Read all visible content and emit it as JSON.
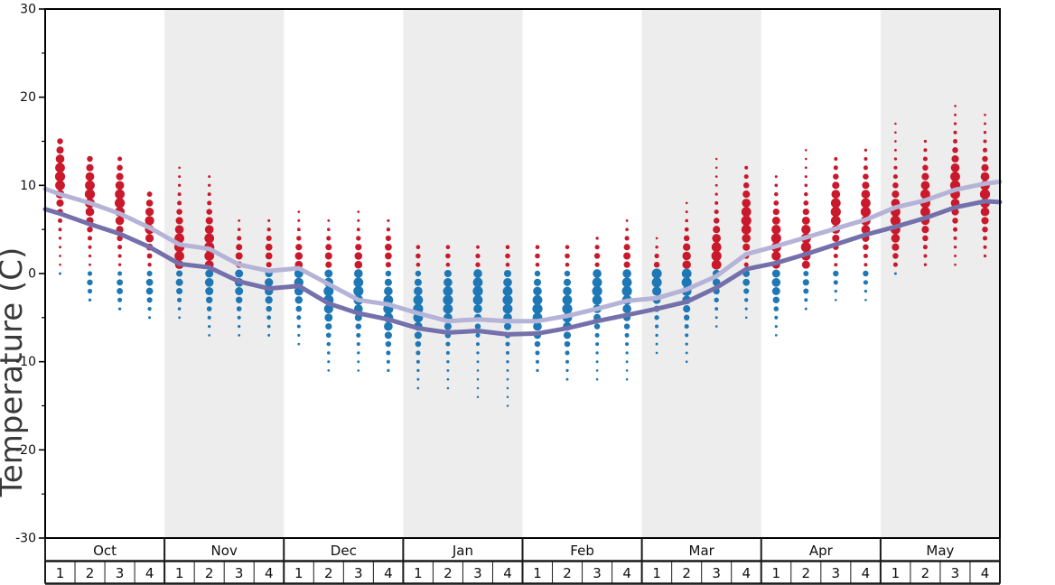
{
  "chart_data": {
    "type": "scatter",
    "title": "",
    "ylabel": "Temperature (C)",
    "ylim": [
      -30,
      30
    ],
    "grid": false,
    "legend": "none",
    "y_axis": {
      "major_ticks": [
        {
          "value": 30,
          "label": "30"
        },
        {
          "value": 20,
          "label": "20"
        },
        {
          "value": 10,
          "label": "10"
        },
        {
          "value": 0,
          "label": "0"
        },
        {
          "value": -10,
          "label": "-10"
        },
        {
          "value": -20,
          "label": "-20"
        },
        {
          "value": -30,
          "label": "-30"
        }
      ],
      "minor_ticks": [
        25,
        15,
        5,
        -5,
        -15,
        -25
      ]
    },
    "x": {
      "months": [
        "Oct",
        "Nov",
        "Dec",
        "Jan",
        "Feb",
        "Mar",
        "Apr",
        "May"
      ],
      "weeks": [
        "1",
        "2",
        "3",
        "4"
      ]
    },
    "colors": {
      "above_freezing_dots": "#c9192b",
      "below_freezing_dots": "#1e78b5",
      "average_high_line": "#b5b3d7",
      "average_low_line": "#7470ab",
      "month_band": "#ededed",
      "axis": "#000000"
    },
    "dot_semantics": "Each weekly column shows the distribution of temperatures: red dots are above-freezing values, blue dots below-freezing; dot size reflects frequency, 1 degree C per dot step.",
    "weeks": [
      {
        "month": "Oct",
        "week": "1",
        "red": {
          "max": 15,
          "peak": 11,
          "min": 1
        },
        "blue": {
          "max": 0,
          "peak": 0,
          "min": 0
        }
      },
      {
        "month": "Oct",
        "week": "2",
        "red": {
          "max": 13,
          "peak": 9,
          "min": 1
        },
        "blue": {
          "max": 0,
          "peak": -1,
          "min": -3
        }
      },
      {
        "month": "Oct",
        "week": "3",
        "red": {
          "max": 13,
          "peak": 8,
          "min": 1
        },
        "blue": {
          "max": 0,
          "peak": -1.5,
          "min": -4
        }
      },
      {
        "month": "Oct",
        "week": "4",
        "red": {
          "max": 9,
          "peak": 5.5,
          "min": 1
        },
        "blue": {
          "max": 0,
          "peak": -1.5,
          "min": -5
        }
      },
      {
        "month": "Nov",
        "week": "1",
        "red": {
          "max": 12,
          "peak": 3,
          "min": 1
        },
        "blue": {
          "max": 0,
          "peak": -1,
          "min": -5
        }
      },
      {
        "month": "Nov",
        "week": "2",
        "red": {
          "max": 11,
          "peak": 3,
          "min": 1
        },
        "blue": {
          "max": 0,
          "peak": -1,
          "min": -7
        }
      },
      {
        "month": "Nov",
        "week": "3",
        "red": {
          "max": 6,
          "peak": 2,
          "min": 1
        },
        "blue": {
          "max": 0,
          "peak": -1,
          "min": -7
        }
      },
      {
        "month": "Nov",
        "week": "4",
        "red": {
          "max": 6,
          "peak": 2.5,
          "min": 1
        },
        "blue": {
          "max": 0,
          "peak": -1.5,
          "min": -7
        }
      },
      {
        "month": "Dec",
        "week": "1",
        "red": {
          "max": 7,
          "peak": 1.5,
          "min": 1
        },
        "blue": {
          "max": 0,
          "peak": -1,
          "min": -8
        }
      },
      {
        "month": "Dec",
        "week": "2",
        "red": {
          "max": 6,
          "peak": 2,
          "min": 1
        },
        "blue": {
          "max": 0,
          "peak": -2.5,
          "min": -11
        }
      },
      {
        "month": "Dec",
        "week": "3",
        "red": {
          "max": 7,
          "peak": 1.5,
          "min": 1
        },
        "blue": {
          "max": 0,
          "peak": -2,
          "min": -11
        }
      },
      {
        "month": "Dec",
        "week": "4",
        "red": {
          "max": 6,
          "peak": 2.5,
          "min": 1
        },
        "blue": {
          "max": 0,
          "peak": -4,
          "min": -11
        }
      },
      {
        "month": "Jan",
        "week": "1",
        "red": {
          "max": 3,
          "peak": 2,
          "min": 1
        },
        "blue": {
          "max": 0,
          "peak": -4,
          "min": -13
        }
      },
      {
        "month": "Jan",
        "week": "2",
        "red": {
          "max": 3,
          "peak": 2,
          "min": 1
        },
        "blue": {
          "max": 0,
          "peak": -3,
          "min": -13
        }
      },
      {
        "month": "Jan",
        "week": "3",
        "red": {
          "max": 3,
          "peak": 1.5,
          "min": 1
        },
        "blue": {
          "max": 0,
          "peak": -2,
          "min": -14
        }
      },
      {
        "month": "Jan",
        "week": "4",
        "red": {
          "max": 3,
          "peak": 2,
          "min": 1
        },
        "blue": {
          "max": 0,
          "peak": -3,
          "min": -15
        }
      },
      {
        "month": "Feb",
        "week": "1",
        "red": {
          "max": 3,
          "peak": 2,
          "min": 1
        },
        "blue": {
          "max": 0,
          "peak": -4,
          "min": -11
        }
      },
      {
        "month": "Feb",
        "week": "2",
        "red": {
          "max": 3,
          "peak": 2,
          "min": 1
        },
        "blue": {
          "max": 0,
          "peak": -4,
          "min": -12
        }
      },
      {
        "month": "Feb",
        "week": "3",
        "red": {
          "max": 4,
          "peak": 2,
          "min": 1
        },
        "blue": {
          "max": 0,
          "peak": -2,
          "min": -12
        }
      },
      {
        "month": "Feb",
        "week": "4",
        "red": {
          "max": 6,
          "peak": 2,
          "min": 1
        },
        "blue": {
          "max": 0,
          "peak": -2,
          "min": -12
        }
      },
      {
        "month": "Mar",
        "week": "1",
        "red": {
          "max": 4,
          "peak": 1,
          "min": 1
        },
        "blue": {
          "max": 0,
          "peak": -0.5,
          "min": -9
        }
      },
      {
        "month": "Mar",
        "week": "2",
        "red": {
          "max": 8,
          "peak": 1.5,
          "min": 1
        },
        "blue": {
          "max": 0,
          "peak": -1,
          "min": -10
        }
      },
      {
        "month": "Mar",
        "week": "3",
        "red": {
          "max": 13,
          "peak": 2,
          "min": 1
        },
        "blue": {
          "max": 0,
          "peak": -0.5,
          "min": -6
        }
      },
      {
        "month": "Mar",
        "week": "4",
        "red": {
          "max": 12,
          "peak": 6,
          "min": 1
        },
        "blue": {
          "max": 0,
          "peak": -0.5,
          "min": -5
        }
      },
      {
        "month": "Apr",
        "week": "1",
        "red": {
          "max": 11,
          "peak": 3.5,
          "min": 1
        },
        "blue": {
          "max": 0,
          "peak": -1,
          "min": -7
        }
      },
      {
        "month": "Apr",
        "week": "2",
        "red": {
          "max": 14,
          "peak": 3.5,
          "min": 1
        },
        "blue": {
          "max": 0,
          "peak": -1,
          "min": -4
        }
      },
      {
        "month": "Apr",
        "week": "3",
        "red": {
          "max": 13,
          "peak": 7,
          "min": 1
        },
        "blue": {
          "max": 0,
          "peak": 0,
          "min": -3
        }
      },
      {
        "month": "Apr",
        "week": "4",
        "red": {
          "max": 14,
          "peak": 7,
          "min": 1
        },
        "blue": {
          "max": 0,
          "peak": 0,
          "min": -3
        }
      },
      {
        "month": "May",
        "week": "1",
        "red": {
          "max": 17,
          "peak": 6,
          "min": 1
        },
        "blue": {
          "max": 0,
          "peak": 0,
          "min": 0
        }
      },
      {
        "month": "May",
        "week": "2",
        "red": {
          "max": 15,
          "peak": 8,
          "min": 1
        },
        "blue": null
      },
      {
        "month": "May",
        "week": "3",
        "red": {
          "max": 19,
          "peak": 10,
          "min": 1
        },
        "blue": null
      },
      {
        "month": "May",
        "week": "4",
        "red": {
          "max": 18,
          "peak": 9,
          "min": 2
        },
        "blue": null
      }
    ],
    "lines": {
      "average_high": {
        "name": "average high guide line",
        "color": "#b5b3d7",
        "left_edge": 9.6,
        "right_edge": 10.4,
        "values": [
          9.0,
          8.0,
          6.8,
          5.2,
          3.3,
          2.8,
          1.0,
          0.3,
          0.6,
          -1.2,
          -3.0,
          -3.5,
          -4.5,
          -5.4,
          -5.2,
          -5.4,
          -5.4,
          -4.8,
          -4.0,
          -3.1,
          -2.8,
          -1.8,
          -0.3,
          2.2,
          3.1,
          4.1,
          5.1,
          6.1,
          7.5,
          8.3,
          9.5,
          10.2
        ]
      },
      "average_low": {
        "name": "average low guide line",
        "color": "#7470ab",
        "left_edge": 7.3,
        "right_edge": 8.1,
        "values": [
          6.8,
          5.6,
          4.5,
          3.0,
          1.1,
          0.7,
          -0.9,
          -1.7,
          -1.4,
          -3.4,
          -4.5,
          -5.2,
          -6.2,
          -6.7,
          -6.5,
          -6.9,
          -6.8,
          -6.2,
          -5.4,
          -4.7,
          -4.0,
          -3.2,
          -1.6,
          0.5,
          1.2,
          2.2,
          3.3,
          4.4,
          5.3,
          6.3,
          7.5,
          8.2
        ]
      }
    }
  }
}
